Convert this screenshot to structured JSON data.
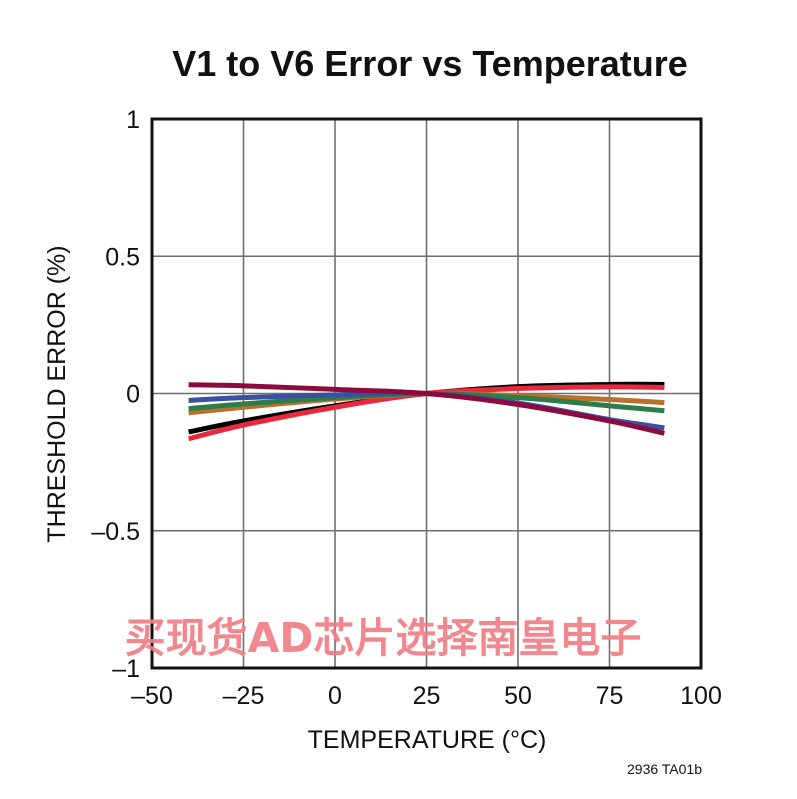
{
  "chart_data": {
    "type": "line",
    "title": "V1 to V6 Error vs Temperature",
    "xlabel": "TEMPERATURE (°C)",
    "ylabel": "THRESHOLD ERROR (%)",
    "xlim": [
      -50,
      100
    ],
    "ylim": [
      -1,
      1
    ],
    "xticks": [
      -50,
      -25,
      0,
      25,
      50,
      75,
      100
    ],
    "yticks": [
      1,
      0.5,
      0,
      -0.5,
      -1
    ],
    "xtick_labels": [
      "–50",
      "–25",
      "0",
      "25",
      "50",
      "75",
      "100"
    ],
    "ytick_labels": [
      "1",
      "0.5",
      "0",
      "–0.5",
      "–1"
    ],
    "grid": true,
    "series": [
      {
        "color": "#000000",
        "x": [
          -40,
          -25,
          0,
          25,
          50,
          75,
          90
        ],
        "y": [
          -0.14,
          -0.1,
          -0.045,
          0,
          0.025,
          0.033,
          0.033
        ]
      },
      {
        "color": "#e8283c",
        "x": [
          -40,
          -25,
          0,
          25,
          50,
          75,
          90
        ],
        "y": [
          -0.165,
          -0.115,
          -0.05,
          0,
          0.018,
          0.024,
          0.022
        ]
      },
      {
        "color": "#b8712c",
        "x": [
          -40,
          -25,
          0,
          25,
          50,
          75,
          90
        ],
        "y": [
          -0.07,
          -0.05,
          -0.02,
          0,
          -0.008,
          -0.022,
          -0.033
        ]
      },
      {
        "color": "#2e7d48",
        "x": [
          -40,
          -25,
          0,
          25,
          50,
          75,
          90
        ],
        "y": [
          -0.055,
          -0.038,
          -0.015,
          0,
          -0.015,
          -0.045,
          -0.063
        ]
      },
      {
        "color": "#3a50a0",
        "x": [
          -40,
          -25,
          0,
          25,
          50,
          75,
          90
        ],
        "y": [
          -0.025,
          -0.015,
          -0.005,
          0,
          -0.035,
          -0.095,
          -0.125
        ]
      },
      {
        "color": "#8c0a3c",
        "x": [
          -40,
          -25,
          0,
          25,
          50,
          75,
          90
        ],
        "y": [
          0.032,
          0.028,
          0.015,
          0,
          -0.04,
          -0.1,
          -0.145
        ]
      }
    ],
    "annotations": [
      "2936 TA01b"
    ]
  },
  "watermark": "买现货AD芯片选择南皇电子"
}
